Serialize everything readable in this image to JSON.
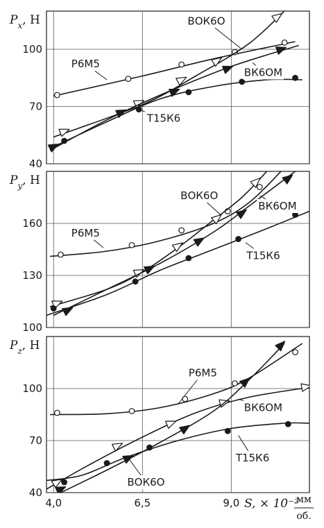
{
  "chart_data": [
    {
      "type": "line",
      "ylabel": "P_x, Н",
      "ylim": [
        40,
        120
      ],
      "yticks": [
        "40",
        "70",
        "100"
      ],
      "xlim": [
        3.8,
        11.2
      ],
      "xticks": [
        "4,0",
        "6,5",
        "9,0"
      ],
      "grid": true,
      "series": [
        {
          "name": "Р6М5",
          "marker": "open-circle",
          "points": [
            [
              4.1,
              76
            ],
            [
              6.1,
              84.5
            ],
            [
              7.6,
              92
            ],
            [
              9.1,
              98.5
            ],
            [
              10.5,
              103.5
            ]
          ],
          "curve": [
            [
              4.0,
              75.5
            ],
            [
              6.5,
              86
            ],
            [
              8.5,
              95
            ],
            [
              10.8,
              104
            ]
          ]
        },
        {
          "name": "ВОК6О",
          "marker": "open-triangle",
          "points": [
            [
              4.3,
              57
            ],
            [
              6.4,
              72
            ],
            [
              7.6,
              84
            ],
            [
              8.6,
              94
            ],
            [
              10.3,
              117
            ]
          ],
          "curve": [
            [
              4.0,
              54
            ],
            [
              6.5,
              71
            ],
            [
              8.0,
              86
            ],
            [
              9.5,
              103
            ],
            [
              10.6,
              122
            ]
          ]
        },
        {
          "name": "ВК6ОМ",
          "marker": "filled-triangle",
          "points": [
            [
              4.0,
              49
            ],
            [
              5.9,
              67
            ],
            [
              7.4,
              78
            ],
            [
              8.9,
              90
            ],
            [
              10.4,
              100
            ]
          ],
          "curve": [
            [
              3.9,
              47
            ],
            [
              5.5,
              63
            ],
            [
              7.0,
              76
            ],
            [
              9.0,
              91
            ],
            [
              10.9,
              102
            ]
          ]
        },
        {
          "name": "Т15К6",
          "marker": "filled-circle",
          "points": [
            [
              4.3,
              52
            ],
            [
              6.4,
              68.5
            ],
            [
              7.8,
              77.5
            ],
            [
              9.3,
              83
            ],
            [
              10.8,
              85
            ]
          ],
          "curve": [
            [
              3.9,
              48
            ],
            [
              5.5,
              62
            ],
            [
              7.0,
              74
            ],
            [
              8.5,
              80.5
            ],
            [
              10.0,
              84
            ],
            [
              11.0,
              84
            ]
          ]
        }
      ]
    },
    {
      "type": "line",
      "ylabel": "P_y, Н",
      "ylim": [
        100,
        190
      ],
      "yticks": [
        "100",
        "130",
        "160"
      ],
      "xlim": [
        3.8,
        11.2
      ],
      "xticks": [
        "4,0",
        "6,5",
        "9,0"
      ],
      "grid": true,
      "series": [
        {
          "name": "Р6М5",
          "marker": "open-circle",
          "points": [
            [
              4.2,
              142
            ],
            [
              6.2,
              147.5
            ],
            [
              7.6,
              156
            ],
            [
              8.9,
              167
            ],
            [
              9.8,
              181
            ]
          ],
          "curve": [
            [
              3.9,
              141
            ],
            [
              5.5,
              144
            ],
            [
              7.0,
              150
            ],
            [
              8.5,
              160
            ],
            [
              9.5,
              172
            ],
            [
              10.4,
              190
            ]
          ]
        },
        {
          "name": "ВОК6О",
          "marker": "open-triangle",
          "points": [
            [
              4.1,
              114
            ],
            [
              6.4,
              132
            ],
            [
              7.5,
              147
            ],
            [
              8.6,
              163
            ],
            [
              9.7,
              184
            ]
          ],
          "curve": [
            [
              3.9,
              112
            ],
            [
              5.5,
              122
            ],
            [
              6.5,
              132
            ],
            [
              7.5,
              146
            ],
            [
              8.5,
              162
            ],
            [
              9.3,
              175
            ],
            [
              10.0,
              190
            ]
          ]
        },
        {
          "name": "ВК6ОМ",
          "marker": "filled-triangle",
          "points": [
            [
              4.4,
              110
            ],
            [
              6.7,
              134
            ],
            [
              8.1,
              150
            ],
            [
              9.3,
              166
            ],
            [
              10.6,
              186
            ]
          ],
          "curve": [
            [
              4.0,
              107
            ],
            [
              5.5,
              122
            ],
            [
              7.0,
              137
            ],
            [
              8.5,
              155
            ],
            [
              9.5,
              170
            ],
            [
              10.8,
              190
            ]
          ]
        },
        {
          "name": "Т15К6",
          "marker": "filled-circle",
          "points": [
            [
              4.0,
              111
            ],
            [
              6.3,
              126.5
            ],
            [
              7.8,
              140
            ],
            [
              9.2,
              151
            ],
            [
              10.8,
              165
            ]
          ],
          "curve": [
            [
              3.8,
              107
            ],
            [
              5.5,
              119
            ],
            [
              7.0,
              133
            ],
            [
              8.5,
              145
            ],
            [
              10.0,
              157
            ],
            [
              11.2,
              167
            ]
          ]
        }
      ]
    },
    {
      "type": "line",
      "ylabel": "P_z, Н",
      "xlabel": "S, × 10⁻²",
      "xunit_top": "мм",
      "xunit_bottom": "об.",
      "ylim": [
        40,
        130
      ],
      "yticks": [
        "40",
        "70",
        "100"
      ],
      "xlim": [
        3.8,
        11.2
      ],
      "xticks": [
        "4,0",
        "6,5",
        "9,0"
      ],
      "grid": true,
      "series": [
        {
          "name": "Р6М5",
          "marker": "open-circle",
          "points": [
            [
              4.1,
              86
            ],
            [
              6.2,
              87
            ],
            [
              7.7,
              94
            ],
            [
              9.1,
              103
            ],
            [
              10.8,
              121
            ]
          ],
          "curve": [
            [
              3.9,
              85
            ],
            [
              5.5,
              85.5
            ],
            [
              7.0,
              89
            ],
            [
              8.5,
              97
            ],
            [
              9.5,
              106
            ],
            [
              11.0,
              126
            ]
          ]
        },
        {
          "name": "ВОК6О",
          "marker": "open-triangle",
          "points": [
            [
              4.1,
              46
            ],
            [
              5.8,
              67
            ],
            [
              7.3,
              80
            ],
            [
              8.8,
              92
            ],
            [
              11.1,
              101
            ]
          ],
          "curve": [
            [
              3.8,
              42
            ],
            [
              5.0,
              56
            ],
            [
              6.5,
              72
            ],
            [
              8.0,
              86
            ],
            [
              9.5,
              95
            ],
            [
              11.3,
              101
            ]
          ]
        },
        {
          "name": "ВК6ОМ",
          "marker": "filled-triangle",
          "points": [
            [
              4.2,
              42
            ],
            [
              6.1,
              60
            ],
            [
              7.7,
              77
            ],
            [
              9.4,
              104
            ],
            [
              10.4,
              125
            ]
          ],
          "curve": [
            [
              3.9,
              37
            ],
            [
              5.5,
              53
            ],
            [
              7.0,
              69
            ],
            [
              8.5,
              87
            ],
            [
              9.5,
              105
            ],
            [
              10.5,
              126
            ]
          ]
        },
        {
          "name": "Т15К6",
          "marker": "filled-circle",
          "points": [
            [
              4.3,
              46
            ],
            [
              5.5,
              57
            ],
            [
              6.7,
              66
            ],
            [
              8.9,
              75.5
            ],
            [
              10.6,
              79.5
            ]
          ],
          "curve": [
            [
              3.8,
              47
            ],
            [
              4.8,
              50
            ],
            [
              6.0,
              60
            ],
            [
              7.5,
              70
            ],
            [
              9.0,
              77
            ],
            [
              10.5,
              80
            ],
            [
              11.2,
              80
            ]
          ]
        }
      ]
    }
  ],
  "labels": [
    {
      "panel": 0,
      "text": "Р6М5",
      "x": 4.9,
      "y": 90.5,
      "to": [
        5.5,
        84
      ]
    },
    {
      "panel": 0,
      "text": "ВОК6О",
      "x": 8.3,
      "y": 113,
      "to": [
        9.3,
        100
      ]
    },
    {
      "panel": 0,
      "text": "ВК6ОМ",
      "x": 9.9,
      "y": 86,
      "to": [
        9.6,
        93
      ]
    },
    {
      "panel": 0,
      "text": "Т15К6",
      "x": 7.1,
      "y": 62,
      "to": [
        6.3,
        69
      ]
    },
    {
      "panel": 1,
      "text": "Р6М5",
      "x": 4.9,
      "y": 152.5,
      "to": [
        5.4,
        146
      ]
    },
    {
      "panel": 1,
      "text": "ВОК6О",
      "x": 8.1,
      "y": 174,
      "to": [
        8.7,
        165
      ]
    },
    {
      "panel": 1,
      "text": "ВК6ОМ",
      "x": 10.3,
      "y": 168,
      "to": [
        9.8,
        176
      ]
    },
    {
      "panel": 1,
      "text": "Т15К6",
      "x": 9.9,
      "y": 139.5,
      "to": [
        9.4,
        149
      ]
    },
    {
      "panel": 2,
      "text": "Р6М5",
      "x": 8.2,
      "y": 107,
      "to": [
        7.5,
        91
      ]
    },
    {
      "panel": 2,
      "text": "ВК6ОМ",
      "x": 9.9,
      "y": 87,
      "to": [
        9.2,
        94
      ]
    },
    {
      "panel": 2,
      "text": "Т15К6",
      "x": 9.6,
      "y": 58,
      "to": [
        9.2,
        73
      ]
    },
    {
      "panel": 2,
      "text": "ВОК6О",
      "x": 6.6,
      "y": 44,
      "to": [
        6.1,
        60
      ]
    }
  ]
}
